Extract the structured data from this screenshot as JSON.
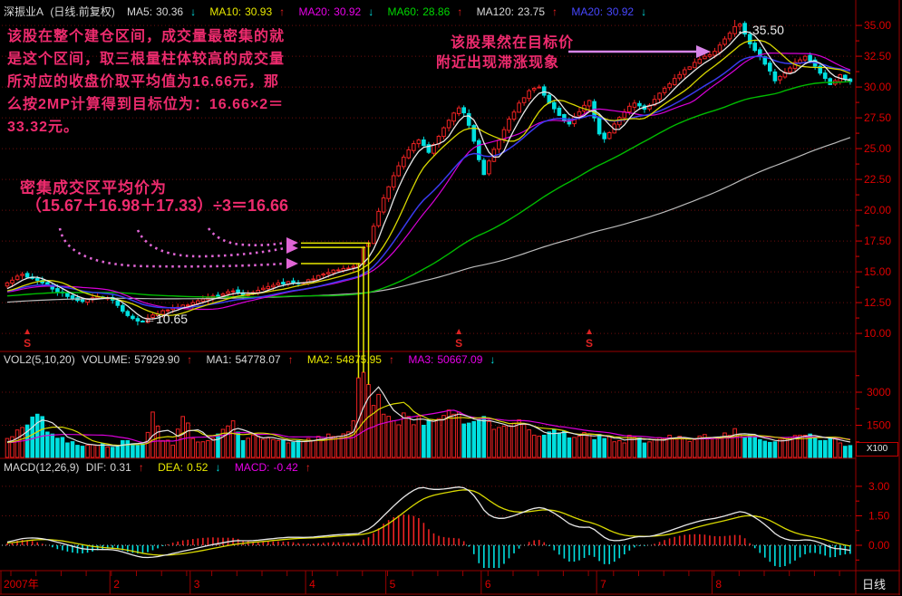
{
  "window": {
    "title": "深振业A",
    "period_note": "(日线.前复权)"
  },
  "price_header": {
    "mas": [
      {
        "label": "MA5:",
        "value": "30.36",
        "arrow": "↓",
        "dir": "down",
        "color": "#d8d8d8"
      },
      {
        "label": "MA10:",
        "value": "30.93",
        "arrow": "↑",
        "dir": "up",
        "color": "#e8e800"
      },
      {
        "label": "MA20:",
        "value": "30.92",
        "arrow": "↓",
        "dir": "down",
        "color": "#e800e8"
      },
      {
        "label": "MA60:",
        "value": "28.86",
        "arrow": "↑",
        "dir": "up",
        "color": "#00d800"
      },
      {
        "label": "MA120:",
        "value": "23.75",
        "arrow": "↑",
        "dir": "up",
        "color": "#d8d8d8"
      },
      {
        "label": "MA20:",
        "value": "30.92",
        "arrow": "↓",
        "dir": "down",
        "color": "#4747ff"
      }
    ]
  },
  "volume_header": {
    "indicator": "VOL2(5,10,20)",
    "items": [
      {
        "label": "VOLUME:",
        "value": "57929.90",
        "arrow": "↑",
        "dir": "up",
        "color": "#d8d8d8"
      },
      {
        "label": "MA1:",
        "value": "54778.07",
        "arrow": "↑",
        "dir": "up",
        "color": "#d8d8d8"
      },
      {
        "label": "MA2:",
        "value": "54875.95",
        "arrow": "↑",
        "dir": "up",
        "color": "#e8e800"
      },
      {
        "label": "MA3:",
        "value": "50667.09",
        "arrow": "↓",
        "dir": "down",
        "color": "#e800e8"
      }
    ]
  },
  "macd_header": {
    "indicator": "MACD(12,26,9)",
    "items": [
      {
        "label": "DIF:",
        "value": "0.31",
        "arrow": "↑",
        "dir": "up",
        "color": "#d8d8d8"
      },
      {
        "label": "DEA:",
        "value": "0.52",
        "arrow": "↓",
        "dir": "down",
        "color": "#e8e800"
      },
      {
        "label": "MACD:",
        "value": "-0.42",
        "arrow": "↑",
        "dir": "up",
        "color": "#e800e8"
      }
    ]
  },
  "annotations": {
    "note1_lines": [
      "该股在整个建仓区间，成交量最密集的就",
      "是这个区间，取三根量柱体较高的成交量",
      "所对应的收盘价取平均值为16.66元，那",
      "么按2MP计算得到目标位为：16.66×2＝",
      "33.32元。"
    ],
    "note2_line1": "该股果然在目标价",
    "note2_line2": "附近出现滞涨现象",
    "note3_line1": "密集成交区平均价为",
    "note3_line2": "（15.67＋16.98＋17.33）÷3＝16.66",
    "peak_label": "← 35.50",
    "dip_label": "←10.65",
    "marker_symbol": "S"
  },
  "axes": {
    "price_labels": [
      "35.00",
      "32.50",
      "30.00",
      "27.50",
      "25.00",
      "22.50",
      "20.00",
      "17.50",
      "15.00",
      "12.50",
      "10.00"
    ],
    "volume_labels": [
      "3000",
      "1500"
    ],
    "volume_unit": "X100",
    "macd_labels": [
      "3.00",
      "1.50",
      "0.00"
    ],
    "months": [
      {
        "label": "2007年",
        "bar": 0
      },
      {
        "label": "2",
        "bar": 21
      },
      {
        "label": "3",
        "bar": 37
      },
      {
        "label": "4",
        "bar": 60
      },
      {
        "label": "5",
        "bar": 76
      },
      {
        "label": "6",
        "bar": 95
      },
      {
        "label": "7",
        "bar": 118
      },
      {
        "label": "8",
        "bar": 141
      }
    ],
    "period": "日线"
  },
  "chart_data": {
    "type": "candlestick",
    "title": "深振业A 日线 前复权 2007",
    "bars": 169,
    "legend": [
      "MA5",
      "MA10",
      "MA20",
      "MA60",
      "MA120"
    ],
    "price_panel": {
      "yticks": [
        35,
        32.5,
        30,
        27.5,
        25,
        22.5,
        20,
        17.5,
        15,
        12.5,
        10
      ],
      "ylim": [
        10,
        35.6
      ],
      "close_keyframes": [
        [
          0,
          14.1
        ],
        [
          3,
          14.8
        ],
        [
          6,
          14.3
        ],
        [
          9,
          13.6
        ],
        [
          12,
          13.0
        ],
        [
          15,
          12.6
        ],
        [
          18,
          13.0
        ],
        [
          21,
          12.7
        ],
        [
          23,
          11.8
        ],
        [
          25,
          11.2
        ],
        [
          27,
          10.95
        ],
        [
          29,
          11.5
        ],
        [
          32,
          11.9
        ],
        [
          35,
          12.3
        ],
        [
          37,
          12.5
        ],
        [
          40,
          12.9
        ],
        [
          43,
          13.2
        ],
        [
          45,
          13.45
        ],
        [
          47,
          13.1
        ],
        [
          50,
          13.5
        ],
        [
          53,
          13.9
        ],
        [
          56,
          14.2
        ],
        [
          58,
          14.05
        ],
        [
          60,
          14.35
        ],
        [
          62,
          14.7
        ],
        [
          64,
          14.95
        ],
        [
          66,
          15.15
        ],
        [
          68,
          15.3
        ],
        [
          69,
          15.45
        ],
        [
          70,
          15.67
        ],
        [
          71,
          16.98
        ],
        [
          72,
          17.33
        ],
        [
          73,
          18.7
        ],
        [
          74,
          19.9
        ],
        [
          75,
          21.0
        ],
        [
          76,
          21.9
        ],
        [
          77,
          22.8
        ],
        [
          78,
          23.6
        ],
        [
          79,
          24.3
        ],
        [
          80,
          24.9
        ],
        [
          81,
          25.4
        ],
        [
          82,
          25.7
        ],
        [
          84,
          24.7
        ],
        [
          86,
          26.0
        ],
        [
          88,
          27.3
        ],
        [
          90,
          28.3
        ],
        [
          91,
          27.9
        ],
        [
          92,
          26.9
        ],
        [
          93,
          25.6
        ],
        [
          94,
          24.1
        ],
        [
          95,
          22.9
        ],
        [
          96,
          24.0
        ],
        [
          98,
          25.7
        ],
        [
          100,
          27.4
        ],
        [
          102,
          28.7
        ],
        [
          104,
          29.7
        ],
        [
          106,
          30.0
        ],
        [
          108,
          28.7
        ],
        [
          110,
          27.7
        ],
        [
          112,
          27.0
        ],
        [
          114,
          28.0
        ],
        [
          116,
          28.9
        ],
        [
          117,
          27.5
        ],
        [
          118,
          26.2
        ],
        [
          119,
          25.8
        ],
        [
          121,
          27.0
        ],
        [
          123,
          28.0
        ],
        [
          125,
          28.7
        ],
        [
          127,
          28.2
        ],
        [
          129,
          29.0
        ],
        [
          131,
          29.9
        ],
        [
          133,
          30.7
        ],
        [
          135,
          31.4
        ],
        [
          137,
          32.0
        ],
        [
          139,
          32.5
        ],
        [
          141,
          32.9
        ],
        [
          143,
          33.9
        ],
        [
          145,
          34.9
        ],
        [
          146,
          35.1
        ],
        [
          147,
          34.3
        ],
        [
          148,
          33.5
        ],
        [
          150,
          32.5
        ],
        [
          152,
          31.3
        ],
        [
          153,
          30.5
        ],
        [
          155,
          31.2
        ],
        [
          157,
          32.0
        ],
        [
          159,
          32.5
        ],
        [
          161,
          31.7
        ],
        [
          163,
          30.7
        ],
        [
          164,
          30.2
        ],
        [
          166,
          31.0
        ],
        [
          168,
          30.45
        ]
      ],
      "pinned_high": [
        [
          145,
          35.5
        ]
      ],
      "pinned_low": [
        [
          26,
          10.65
        ]
      ],
      "peak_value": 35.5,
      "dip_value": 10.65,
      "accumulation_closes": [
        15.67,
        16.98,
        17.33
      ],
      "accumulation_avg": 16.66,
      "target_price": 33.32,
      "ma_periods": [
        5,
        10,
        20,
        60,
        120
      ]
    },
    "volume_panel": {
      "yticks": [
        3000,
        1500
      ],
      "unit": "X100",
      "ma_periods": [
        5,
        10,
        20
      ],
      "volume_keyframes": [
        [
          0,
          900
        ],
        [
          3,
          1400
        ],
        [
          6,
          2000
        ],
        [
          9,
          1100
        ],
        [
          12,
          700
        ],
        [
          15,
          550
        ],
        [
          18,
          600
        ],
        [
          21,
          500
        ],
        [
          24,
          800
        ],
        [
          27,
          650
        ],
        [
          29,
          2100
        ],
        [
          31,
          800
        ],
        [
          33,
          600
        ],
        [
          35,
          1900
        ],
        [
          37,
          900
        ],
        [
          40,
          800
        ],
        [
          42,
          1100
        ],
        [
          45,
          1700
        ],
        [
          47,
          800
        ],
        [
          50,
          1000
        ],
        [
          53,
          850
        ],
        [
          56,
          700
        ],
        [
          58,
          800
        ],
        [
          60,
          900
        ],
        [
          62,
          1000
        ],
        [
          64,
          1100
        ],
        [
          66,
          1000
        ],
        [
          68,
          1200
        ],
        [
          69,
          1700
        ],
        [
          70,
          3650
        ],
        [
          71,
          3900
        ],
        [
          72,
          3350
        ],
        [
          73,
          2400
        ],
        [
          74,
          2900
        ],
        [
          75,
          2000
        ],
        [
          77,
          1700
        ],
        [
          80,
          1900
        ],
        [
          83,
          1500
        ],
        [
          86,
          1800
        ],
        [
          89,
          2000
        ],
        [
          92,
          1600
        ],
        [
          95,
          1900
        ],
        [
          98,
          1400
        ],
        [
          101,
          1600
        ],
        [
          104,
          1300
        ],
        [
          107,
          1050
        ],
        [
          110,
          1150
        ],
        [
          113,
          950
        ],
        [
          116,
          1100
        ],
        [
          119,
          900
        ],
        [
          122,
          800
        ],
        [
          125,
          950
        ],
        [
          128,
          750
        ],
        [
          131,
          900
        ],
        [
          134,
          1000
        ],
        [
          137,
          850
        ],
        [
          140,
          950
        ],
        [
          143,
          1150
        ],
        [
          145,
          1350
        ],
        [
          147,
          950
        ],
        [
          150,
          850
        ],
        [
          153,
          750
        ],
        [
          156,
          950
        ],
        [
          159,
          1050
        ],
        [
          162,
          800
        ],
        [
          165,
          900
        ],
        [
          166,
          700
        ],
        [
          168,
          580
        ]
      ]
    },
    "macd_panel": {
      "params": [
        12,
        26,
        9
      ],
      "yticks": [
        3,
        1.5,
        0
      ]
    },
    "markers": {
      "symbol": "S",
      "bars": [
        4,
        90,
        116
      ]
    },
    "colors": {
      "up": "#ee2222",
      "down": "#00e0e0",
      "axis_text": "#dd0000",
      "grid": "#6e0e0e",
      "frame": "#9a0000",
      "annotation_pink": "#ee2b6e",
      "annotation_arrow": "#d884e8",
      "highlight_yellow": "#e8e800"
    }
  }
}
